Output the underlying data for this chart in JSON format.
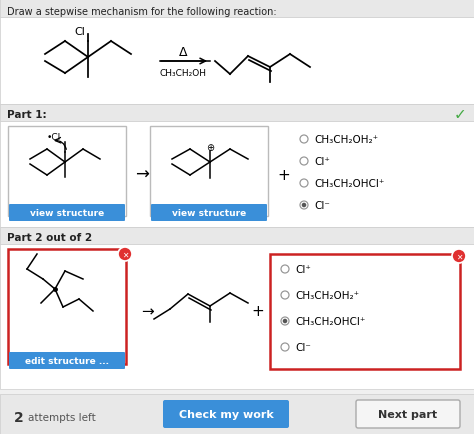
{
  "bg_color": "#f0f0f0",
  "white": "#ffffff",
  "blue_btn": "#3a8fd9",
  "red_border": "#cc2222",
  "green_check": "#44aa44",
  "red_x_bg": "#e03030",
  "title": "Draw a stepwise mechanism for the following reaction:",
  "part1_label": "Part 1:",
  "part2_label": "Part 2 out of 2",
  "attempts_text": "2  attempts left",
  "btn1": "Check my work",
  "btn2": "Next part",
  "options_part1": [
    "CH₃CH₂OH₂⁺",
    "Cl⁺",
    "CH₃CH₂OHCl⁺",
    "Cl⁻"
  ],
  "options_part2": [
    "Cl⁺",
    "CH₃CH₂OH₂⁺",
    "CH₃CH₂OHCl⁺",
    "Cl⁻"
  ],
  "selected_part1": 3,
  "selected_part2": 2
}
